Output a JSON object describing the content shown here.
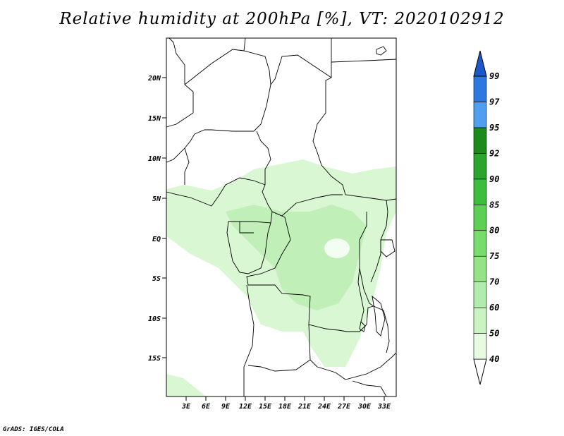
{
  "title": "Relative humidity at 200hPa [%], VT: 2020102912",
  "credit": "GrADS: IGES/COLA",
  "map": {
    "lat_labels": [
      "20N",
      "15N",
      "10N",
      "5N",
      "EQ",
      "5S",
      "10S",
      "15S"
    ],
    "lon_labels": [
      "3E",
      "6E",
      "9E",
      "12E",
      "15E",
      "18E",
      "21E",
      "24E",
      "27E",
      "30E",
      "33E"
    ]
  },
  "colorbar": {
    "levels": [
      "40",
      "50",
      "60",
      "70",
      "75",
      "80",
      "85",
      "90",
      "92",
      "95",
      "97",
      "99"
    ],
    "colors": [
      "#ffffff",
      "#e6fbe1",
      "#c9f3c1",
      "#b0ecab",
      "#94e487",
      "#78dc6c",
      "#5ccf55",
      "#3cbe3c",
      "#2ba52b",
      "#1b8c1b",
      "#4f9ef0",
      "#2a78e0",
      "#1c58c9"
    ]
  },
  "colors": {
    "land_line": "#000000",
    "frame": "#000000"
  }
}
